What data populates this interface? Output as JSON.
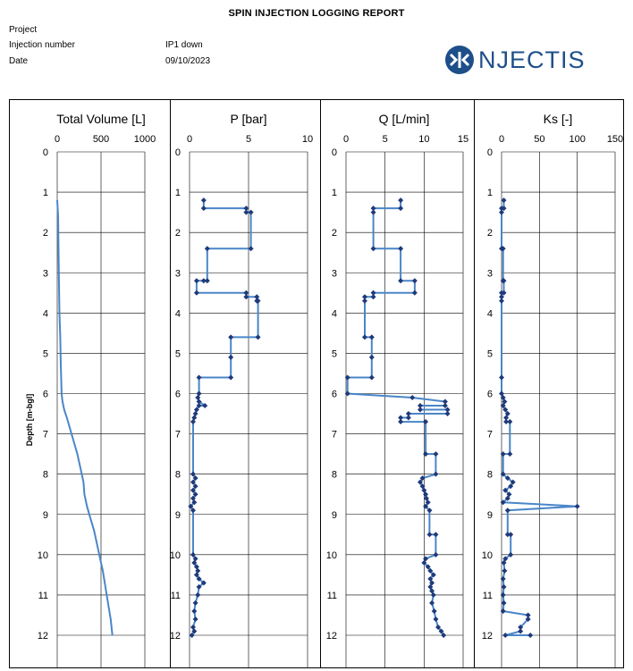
{
  "header": {
    "title": "SPIN INJECTION LOGGING REPORT",
    "project_label": "Project",
    "project_value": "",
    "injection_label": "Injection number",
    "injection_value": "IP1 down",
    "date_label": "Date",
    "date_value": "09/10/2023",
    "logo_text": "NJECTIS"
  },
  "colors": {
    "line": "#4a86c8",
    "marker": "#1f3a7a",
    "logo": "#1e4f8a",
    "grid": "#000000"
  },
  "chart_data": [
    {
      "type": "line",
      "title": "Total Volume [L]",
      "ylabel": "Depth [m-bgl]",
      "xlim": [
        0,
        1000
      ],
      "x_ticks": [
        0,
        500,
        1000
      ],
      "ylim": [
        0,
        12
      ],
      "y_ticks": [
        0,
        1,
        2,
        3,
        4,
        5,
        6,
        7,
        8,
        9,
        10,
        11,
        12
      ],
      "markers": false,
      "series": [
        {
          "points": [
            [
              0,
              1.2
            ],
            [
              10,
              1.6
            ],
            [
              15,
              2.5
            ],
            [
              20,
              3.3
            ],
            [
              25,
              4.0
            ],
            [
              35,
              4.6
            ],
            [
              40,
              5.2
            ],
            [
              45,
              5.6
            ],
            [
              50,
              6.0
            ],
            [
              60,
              6.2
            ],
            [
              80,
              6.4
            ],
            [
              110,
              6.6
            ],
            [
              150,
              6.9
            ],
            [
              190,
              7.2
            ],
            [
              230,
              7.5
            ],
            [
              270,
              7.9
            ],
            [
              300,
              8.2
            ],
            [
              310,
              8.5
            ],
            [
              340,
              8.8
            ],
            [
              380,
              9.1
            ],
            [
              420,
              9.4
            ],
            [
              460,
              9.8
            ],
            [
              490,
              10.1
            ],
            [
              520,
              10.4
            ],
            [
              550,
              10.8
            ],
            [
              580,
              11.2
            ],
            [
              610,
              11.6
            ],
            [
              630,
              12.0
            ]
          ]
        }
      ]
    },
    {
      "type": "line",
      "title": "P [bar]",
      "xlim": [
        0,
        10
      ],
      "x_ticks": [
        0,
        5,
        10
      ],
      "ylim": [
        0,
        12
      ],
      "y_ticks": [
        0,
        1,
        2,
        3,
        4,
        5,
        6,
        7,
        8,
        9,
        10,
        11,
        12
      ],
      "markers": true,
      "series": [
        {
          "points": [
            [
              1.2,
              1.2
            ],
            [
              1.2,
              1.4
            ],
            [
              4.8,
              1.4
            ],
            [
              4.8,
              1.5
            ],
            [
              5.2,
              1.5
            ],
            [
              5.2,
              2.4
            ],
            [
              1.5,
              2.4
            ],
            [
              1.5,
              3.2
            ],
            [
              1.2,
              3.2
            ],
            [
              0.6,
              3.2
            ],
            [
              0.6,
              3.5
            ],
            [
              4.8,
              3.5
            ],
            [
              4.8,
              3.6
            ],
            [
              5.7,
              3.6
            ],
            [
              5.7,
              3.7
            ],
            [
              5.8,
              3.7
            ],
            [
              5.8,
              4.6
            ],
            [
              3.5,
              4.6
            ],
            [
              3.5,
              5.1
            ],
            [
              3.5,
              5.6
            ],
            [
              0.8,
              5.6
            ],
            [
              0.8,
              6.0
            ],
            [
              0.7,
              6.1
            ],
            [
              0.8,
              6.2
            ],
            [
              1.3,
              6.3
            ],
            [
              0.8,
              6.3
            ],
            [
              0.6,
              6.4
            ],
            [
              0.5,
              6.5
            ],
            [
              0.4,
              6.6
            ],
            [
              0.3,
              6.7
            ],
            [
              0.3,
              8.0
            ],
            [
              0.5,
              8.1
            ],
            [
              0.3,
              8.2
            ],
            [
              0.5,
              8.3
            ],
            [
              0.3,
              8.4
            ],
            [
              0.5,
              8.5
            ],
            [
              0.3,
              8.6
            ],
            [
              0.4,
              8.7
            ],
            [
              0.1,
              8.8
            ],
            [
              0.3,
              8.9
            ],
            [
              0.3,
              10.0
            ],
            [
              0.5,
              10.1
            ],
            [
              0.4,
              10.2
            ],
            [
              0.6,
              10.3
            ],
            [
              0.7,
              10.4
            ],
            [
              0.6,
              10.5
            ],
            [
              0.8,
              10.6
            ],
            [
              1.2,
              10.7
            ],
            [
              0.8,
              10.8
            ],
            [
              0.7,
              11.0
            ],
            [
              0.5,
              11.2
            ],
            [
              0.4,
              11.4
            ],
            [
              0.5,
              11.6
            ],
            [
              0.3,
              11.8
            ],
            [
              0.4,
              11.9
            ],
            [
              0.2,
              12.0
            ]
          ]
        }
      ]
    },
    {
      "type": "line",
      "title": "Q [L/min]",
      "xlim": [
        0,
        15
      ],
      "x_ticks": [
        0,
        5,
        10,
        15
      ],
      "ylim": [
        0,
        12
      ],
      "y_ticks": [
        0,
        1,
        2,
        3,
        4,
        5,
        6,
        7,
        8,
        9,
        10,
        11,
        12
      ],
      "markers": true,
      "series": [
        {
          "points": [
            [
              7.0,
              1.2
            ],
            [
              7.0,
              1.4
            ],
            [
              3.5,
              1.4
            ],
            [
              3.5,
              1.5
            ],
            [
              3.5,
              2.4
            ],
            [
              7.0,
              2.4
            ],
            [
              7.0,
              3.2
            ],
            [
              8.8,
              3.2
            ],
            [
              8.8,
              3.5
            ],
            [
              3.5,
              3.5
            ],
            [
              3.5,
              3.6
            ],
            [
              2.4,
              3.6
            ],
            [
              2.4,
              3.7
            ],
            [
              2.4,
              4.6
            ],
            [
              3.3,
              4.6
            ],
            [
              3.3,
              5.1
            ],
            [
              3.3,
              5.6
            ],
            [
              0.2,
              5.6
            ],
            [
              0.2,
              6.0
            ],
            [
              8.5,
              6.1
            ],
            [
              12.7,
              6.2
            ],
            [
              12.7,
              6.3
            ],
            [
              9.5,
              6.3
            ],
            [
              9.5,
              6.4
            ],
            [
              13.0,
              6.4
            ],
            [
              13.0,
              6.5
            ],
            [
              8.0,
              6.5
            ],
            [
              8.0,
              6.6
            ],
            [
              7.0,
              6.6
            ],
            [
              7.0,
              6.7
            ],
            [
              10.2,
              6.7
            ],
            [
              10.2,
              7.5
            ],
            [
              11.5,
              7.5
            ],
            [
              11.5,
              8.0
            ],
            [
              9.8,
              8.1
            ],
            [
              9.5,
              8.2
            ],
            [
              9.8,
              8.3
            ],
            [
              10.0,
              8.4
            ],
            [
              10.2,
              8.5
            ],
            [
              10.3,
              8.6
            ],
            [
              10.5,
              8.7
            ],
            [
              10.2,
              8.8
            ],
            [
              10.7,
              8.9
            ],
            [
              10.7,
              9.5
            ],
            [
              11.5,
              9.5
            ],
            [
              11.5,
              10.0
            ],
            [
              10.2,
              10.1
            ],
            [
              10.0,
              10.2
            ],
            [
              10.5,
              10.3
            ],
            [
              10.8,
              10.4
            ],
            [
              11.2,
              10.5
            ],
            [
              10.8,
              10.6
            ],
            [
              11.0,
              10.7
            ],
            [
              10.8,
              10.8
            ],
            [
              11.0,
              10.9
            ],
            [
              11.2,
              11.0
            ],
            [
              11.0,
              11.2
            ],
            [
              11.3,
              11.4
            ],
            [
              11.5,
              11.6
            ],
            [
              11.8,
              11.8
            ],
            [
              12.2,
              11.9
            ],
            [
              12.5,
              12.0
            ]
          ]
        }
      ]
    },
    {
      "type": "line",
      "title": "Ks [-]",
      "xlim": [
        0,
        150
      ],
      "x_ticks": [
        0,
        50,
        100,
        150
      ],
      "ylim": [
        0,
        12
      ],
      "y_ticks": [
        0,
        1,
        2,
        3,
        4,
        5,
        6,
        7,
        8,
        9,
        10,
        11,
        12
      ],
      "markers": true,
      "series": [
        {
          "points": [
            [
              3,
              1.2
            ],
            [
              3,
              1.4
            ],
            [
              0,
              1.4
            ],
            [
              0,
              1.5
            ],
            [
              0,
              2.4
            ],
            [
              2,
              2.4
            ],
            [
              2,
              3.2
            ],
            [
              3,
              3.2
            ],
            [
              3,
              3.5
            ],
            [
              0,
              3.5
            ],
            [
              0,
              3.6
            ],
            [
              0,
              3.7
            ],
            [
              0,
              5.6
            ],
            [
              0,
              6.0
            ],
            [
              2,
              6.1
            ],
            [
              4,
              6.2
            ],
            [
              2,
              6.3
            ],
            [
              5,
              6.4
            ],
            [
              8,
              6.5
            ],
            [
              6,
              6.6
            ],
            [
              6,
              6.7
            ],
            [
              11,
              6.7
            ],
            [
              11,
              7.5
            ],
            [
              2,
              7.5
            ],
            [
              2,
              8.0
            ],
            [
              8,
              8.1
            ],
            [
              15,
              8.2
            ],
            [
              12,
              8.3
            ],
            [
              5,
              8.4
            ],
            [
              10,
              8.5
            ],
            [
              8,
              8.6
            ],
            [
              2,
              8.7
            ],
            [
              100,
              8.8
            ],
            [
              8,
              8.9
            ],
            [
              8,
              9.5
            ],
            [
              12,
              9.5
            ],
            [
              12,
              10.0
            ],
            [
              5,
              10.1
            ],
            [
              3,
              10.2
            ],
            [
              4,
              10.4
            ],
            [
              2,
              10.6
            ],
            [
              3,
              10.8
            ],
            [
              2,
              11.0
            ],
            [
              3,
              11.2
            ],
            [
              2,
              11.4
            ],
            [
              35,
              11.5
            ],
            [
              35,
              11.6
            ],
            [
              25,
              11.8
            ],
            [
              25,
              11.9
            ],
            [
              5,
              12.0
            ],
            [
              38,
              12.0
            ]
          ]
        }
      ]
    }
  ]
}
